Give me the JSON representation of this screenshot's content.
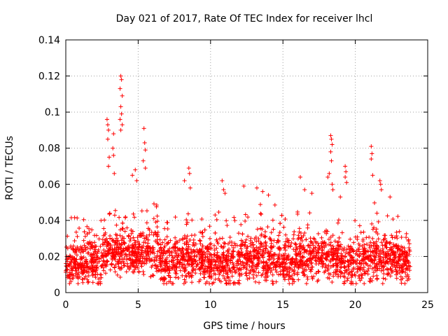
{
  "chart_data": {
    "type": "scatter",
    "title": "Day 021 of 2017, Rate Of TEC Index for receiver lhcl",
    "xlabel": "GPS time / hours",
    "ylabel": "ROTI / TECUs",
    "xlim": [
      0,
      25
    ],
    "ylim": [
      0,
      0.14
    ],
    "xticks": [
      0,
      5,
      10,
      15,
      20,
      25
    ],
    "yticks": [
      0,
      0.02,
      0.04,
      0.06,
      0.08,
      0.1,
      0.12,
      0.14
    ],
    "xtick_labels": [
      "0",
      "5",
      "10",
      "15",
      "20",
      "25"
    ],
    "ytick_labels": [
      "0",
      "0.02",
      "0.04",
      "0.06",
      "0.08",
      "0.1",
      "0.12",
      "0.14"
    ],
    "grid": true,
    "marker": "plus",
    "color": "#ff0000",
    "data_x_range": [
      0,
      23.8
    ],
    "series": [
      {
        "name": "ROTI",
        "points": [
          [
            3.8,
            0.12
          ],
          [
            3.85,
            0.118
          ],
          [
            3.75,
            0.113
          ],
          [
            3.9,
            0.109
          ],
          [
            3.8,
            0.103
          ],
          [
            3.85,
            0.099
          ],
          [
            3.75,
            0.096
          ],
          [
            3.9,
            0.093
          ],
          [
            3.8,
            0.09
          ],
          [
            2.85,
            0.096
          ],
          [
            2.9,
            0.093
          ],
          [
            2.95,
            0.09
          ],
          [
            2.9,
            0.085
          ],
          [
            3.3,
            0.088
          ],
          [
            3.25,
            0.08
          ],
          [
            3.3,
            0.076
          ],
          [
            3.0,
            0.075
          ],
          [
            2.95,
            0.07
          ],
          [
            3.35,
            0.066
          ],
          [
            5.4,
            0.091
          ],
          [
            5.45,
            0.083
          ],
          [
            5.5,
            0.079
          ],
          [
            5.35,
            0.073
          ],
          [
            5.5,
            0.069
          ],
          [
            4.8,
            0.068
          ],
          [
            4.9,
            0.062
          ],
          [
            4.6,
            0.065
          ],
          [
            8.5,
            0.069
          ],
          [
            8.55,
            0.066
          ],
          [
            8.2,
            0.062
          ],
          [
            8.6,
            0.058
          ],
          [
            10.8,
            0.062
          ],
          [
            10.9,
            0.057
          ],
          [
            11.0,
            0.055
          ],
          [
            12.3,
            0.059
          ],
          [
            13.2,
            0.058
          ],
          [
            13.6,
            0.056
          ],
          [
            14.0,
            0.054
          ],
          [
            16.2,
            0.064
          ],
          [
            16.5,
            0.057
          ],
          [
            17.0,
            0.055
          ],
          [
            18.3,
            0.087
          ],
          [
            18.35,
            0.085
          ],
          [
            18.4,
            0.082
          ],
          [
            18.3,
            0.078
          ],
          [
            18.35,
            0.073
          ],
          [
            18.2,
            0.066
          ],
          [
            18.1,
            0.064
          ],
          [
            18.4,
            0.06
          ],
          [
            18.45,
            0.057
          ],
          [
            19.3,
            0.07
          ],
          [
            19.35,
            0.067
          ],
          [
            19.3,
            0.064
          ],
          [
            19.4,
            0.061
          ],
          [
            21.1,
            0.081
          ],
          [
            21.15,
            0.077
          ],
          [
            21.1,
            0.074
          ],
          [
            21.2,
            0.065
          ],
          [
            21.7,
            0.062
          ],
          [
            21.75,
            0.06
          ],
          [
            21.8,
            0.057
          ],
          [
            22.4,
            0.053
          ]
        ]
      }
    ]
  }
}
